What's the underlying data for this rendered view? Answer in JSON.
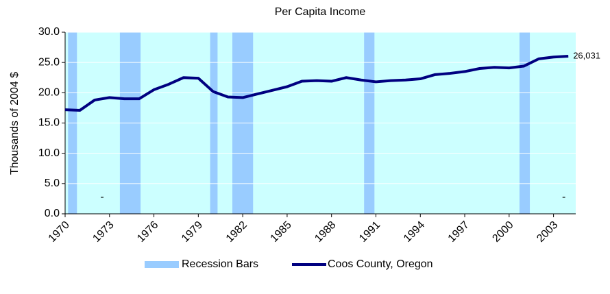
{
  "chart_data": {
    "type": "line",
    "title": "Per Capita Income",
    "y_label": "Thousands of 2004 $",
    "xlim": [
      1970,
      2004.5
    ],
    "xticks": [
      1970,
      1973,
      1976,
      1979,
      1982,
      1985,
      1988,
      1991,
      1994,
      1997,
      2000,
      2003
    ],
    "ylim": [
      0,
      30
    ],
    "yticks": [
      {
        "value": 0,
        "label": "0.0"
      },
      {
        "value": 5,
        "label": "5.0"
      },
      {
        "value": 10,
        "label": "10.0"
      },
      {
        "value": 15,
        "label": "15.0"
      },
      {
        "value": 20,
        "label": "20.0"
      },
      {
        "value": 25,
        "label": "25.0"
      },
      {
        "value": 30,
        "label": "30.0"
      }
    ],
    "grid": true,
    "background": "#ccffff",
    "legend": "bottom",
    "recession": {
      "name": "Recession Bars",
      "color": "#99ccff",
      "spans": [
        [
          1970.2,
          1970.8
        ],
        [
          1973.7,
          1975.1
        ],
        [
          1979.8,
          1980.3
        ],
        [
          1981.3,
          1982.7
        ],
        [
          1990.2,
          1990.9
        ],
        [
          2000.7,
          2001.4
        ]
      ]
    },
    "x": [
      1970,
      1971,
      1972,
      1973,
      1974,
      1975,
      1976,
      1977,
      1978,
      1979,
      1980,
      1981,
      1982,
      1983,
      1984,
      1985,
      1986,
      1987,
      1988,
      1989,
      1990,
      1991,
      1992,
      1993,
      1994,
      1995,
      1996,
      1997,
      1998,
      1999,
      2000,
      2001,
      2002,
      2003,
      2004
    ],
    "series": [
      {
        "name": "Coos County, Oregon",
        "color": "#000080",
        "values": [
          17.2,
          17.1,
          18.8,
          19.2,
          19.0,
          19.0,
          20.5,
          21.4,
          22.5,
          22.4,
          20.2,
          19.3,
          19.2,
          19.8,
          20.4,
          21.0,
          21.9,
          22.0,
          21.9,
          22.5,
          22.1,
          21.8,
          22.0,
          22.1,
          22.3,
          23.0,
          23.2,
          23.5,
          24.0,
          24.2,
          24.1,
          24.4,
          25.6,
          25.9,
          26.031
        ],
        "value_labels": [
          null,
          null,
          null,
          null,
          null,
          null,
          null,
          null,
          null,
          null,
          null,
          null,
          null,
          null,
          null,
          null,
          null,
          null,
          null,
          null,
          null,
          null,
          null,
          null,
          null,
          null,
          null,
          null,
          null,
          null,
          null,
          null,
          null,
          null,
          "26,031"
        ]
      }
    ],
    "annotations": [
      {
        "text": "-",
        "x": 1972.5,
        "y": 0
      },
      {
        "text": "-",
        "x": 2003.7,
        "y": 0
      }
    ]
  }
}
